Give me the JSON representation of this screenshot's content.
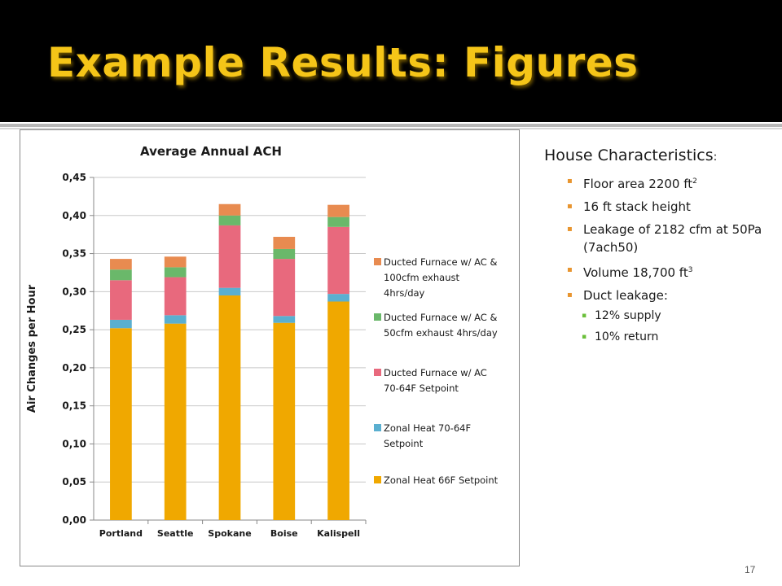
{
  "slide": {
    "title": "Example Results: Figures",
    "page_number": "17"
  },
  "side_panel": {
    "heading": "House Characteristics",
    "heading_suffix": ":",
    "bullets": [
      {
        "text": "Floor area 2200 ft",
        "sup": "2"
      },
      {
        "text": "16 ft stack height",
        "sup": ""
      },
      {
        "text": "Leakage of 2182 cfm at 50Pa (7ach50)",
        "sup": ""
      },
      {
        "text": "Volume 18,700 ft",
        "sup": "3"
      },
      {
        "text": "Duct leakage:",
        "sup": ""
      }
    ],
    "sub_bullets": [
      "12% supply",
      "10% return"
    ]
  },
  "chart_data": {
    "type": "bar",
    "stacked": true,
    "title": "Average Annual ACH",
    "ylabel": "Air Changes per Hour",
    "xlabel": "",
    "ylim": [
      0,
      0.45
    ],
    "yticks": [
      "0,00",
      "0,05",
      "0,10",
      "0,15",
      "0,20",
      "0,25",
      "0,30",
      "0,35",
      "0,40",
      "0,45"
    ],
    "categories": [
      "Portland",
      "Seattle",
      "Spokane",
      "Boise",
      "Kalispell"
    ],
    "legend_position": "right",
    "series": [
      {
        "name": "Zonal Heat 66F Setpoint",
        "color": "#f0a800",
        "values": [
          0.252,
          0.258,
          0.295,
          0.259,
          0.287
        ]
      },
      {
        "name": "Zonal Heat 70-64F Setpoint",
        "color": "#5aafd0",
        "values": [
          0.011,
          0.011,
          0.01,
          0.009,
          0.01
        ]
      },
      {
        "name": "Ducted Furnace w/ AC 70-64F Setpoint",
        "color": "#e8697d",
        "values": [
          0.052,
          0.05,
          0.082,
          0.075,
          0.088
        ]
      },
      {
        "name": "Ducted Furnace w/ AC & 50cfm exhaust 4hrs/day",
        "color": "#6ab86a",
        "values": [
          0.014,
          0.013,
          0.013,
          0.013,
          0.013
        ]
      },
      {
        "name": "Ducted Furnace w/ AC & 100cfm exhaust 4hrs/day",
        "color": "#e88b50",
        "values": [
          0.014,
          0.014,
          0.015,
          0.016,
          0.016
        ]
      }
    ],
    "legend_lines": [
      [
        "Ducted Furnace w/ AC &",
        "100cfm exhaust",
        "4hrs/day"
      ],
      [
        "Ducted Furnace w/ AC &",
        "50cfm exhaust 4hrs/day"
      ],
      [
        "Ducted Furnace w/ AC",
        "70-64F Setpoint"
      ],
      [
        "Zonal Heat 70-64F",
        "Setpoint"
      ],
      [
        "Zonal Heat 66F Setpoint"
      ]
    ]
  }
}
